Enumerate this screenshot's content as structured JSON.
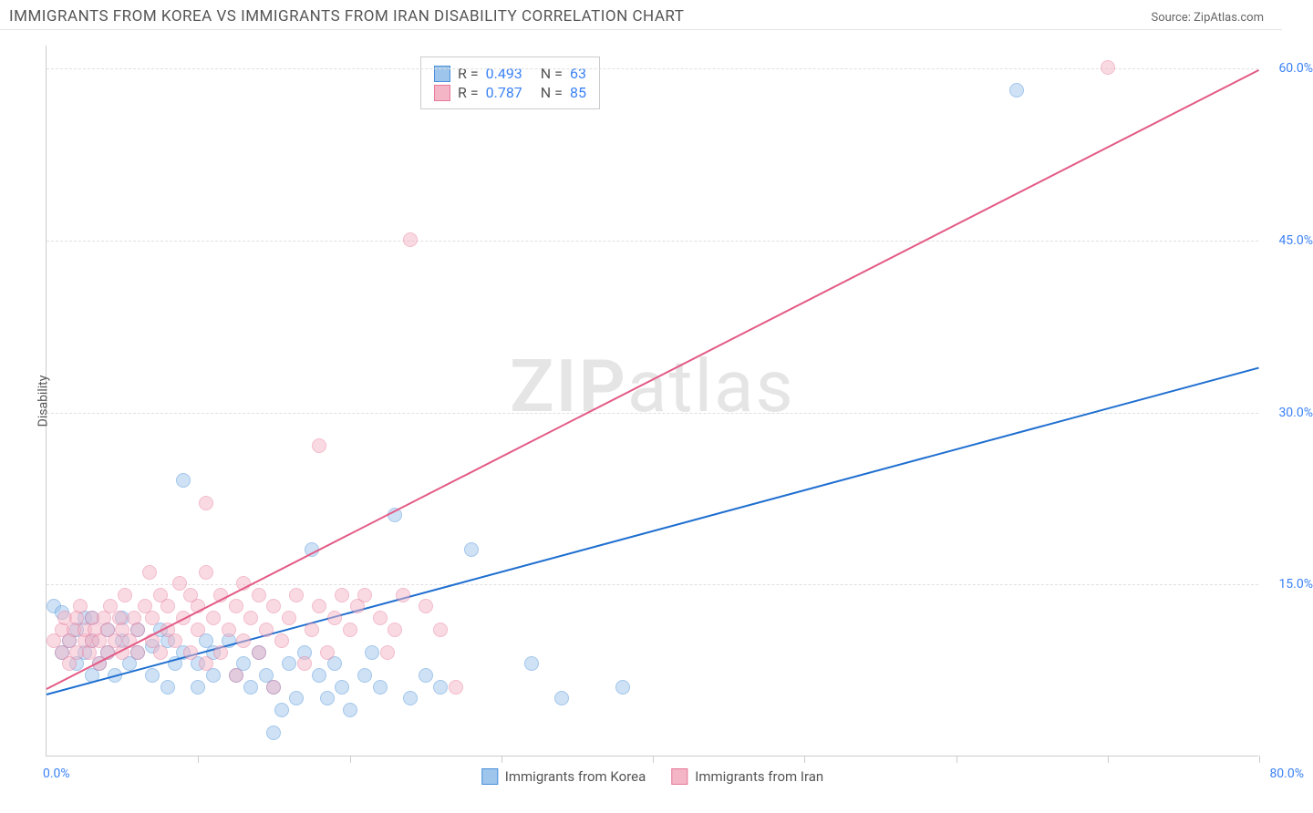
{
  "header": {
    "title": "IMMIGRANTS FROM KOREA VS IMMIGRANTS FROM IRAN DISABILITY CORRELATION CHART",
    "source_label": "Source: ZipAtlas.com"
  },
  "watermark": {
    "left": "ZIP",
    "right": "atlas"
  },
  "chart": {
    "type": "scatter",
    "y_axis_label": "Disability",
    "xlim": [
      0,
      80
    ],
    "ylim": [
      0,
      62
    ],
    "x_min_label": "0.0%",
    "x_max_label": "80.0%",
    "y_ticks": [
      15,
      30,
      45,
      60
    ],
    "y_tick_labels": [
      "15.0%",
      "30.0%",
      "45.0%",
      "60.0%"
    ],
    "x_tick_positions": [
      10,
      20,
      30,
      40,
      50,
      60,
      70,
      80
    ],
    "grid_color": "#e0e0e0",
    "axis_color": "#cccccc",
    "tick_label_color": "#3b82f6",
    "background_color": "#ffffff",
    "point_radius": 8,
    "point_opacity": 0.5,
    "series": [
      {
        "name": "Immigrants from Korea",
        "key": "korea",
        "color_fill": "#9ec5ec",
        "color_stroke": "#4a90d9",
        "R": "0.493",
        "N": "63",
        "trend": {
          "x1": 0,
          "y1": 5.5,
          "x2": 80,
          "y2": 34,
          "color": "#1f6fd0",
          "width": 2
        },
        "points": [
          [
            0.5,
            13
          ],
          [
            1,
            9
          ],
          [
            1,
            12.5
          ],
          [
            1.5,
            10
          ],
          [
            2,
            8
          ],
          [
            2,
            11
          ],
          [
            2.5,
            9
          ],
          [
            2.5,
            12
          ],
          [
            3,
            7
          ],
          [
            3,
            10
          ],
          [
            3,
            12
          ],
          [
            3.5,
            8
          ],
          [
            4,
            9
          ],
          [
            4,
            11
          ],
          [
            4.5,
            7
          ],
          [
            5,
            10
          ],
          [
            5,
            12
          ],
          [
            5.5,
            8
          ],
          [
            6,
            9
          ],
          [
            6,
            11
          ],
          [
            7,
            7
          ],
          [
            7,
            9.5
          ],
          [
            7.5,
            11
          ],
          [
            8,
            6
          ],
          [
            8,
            10
          ],
          [
            8.5,
            8
          ],
          [
            9,
            9
          ],
          [
            9,
            24
          ],
          [
            10,
            6
          ],
          [
            10,
            8
          ],
          [
            10.5,
            10
          ],
          [
            11,
            7
          ],
          [
            11,
            9
          ],
          [
            12,
            10
          ],
          [
            12.5,
            7
          ],
          [
            13,
            8
          ],
          [
            13.5,
            6
          ],
          [
            14,
            9
          ],
          [
            14.5,
            7
          ],
          [
            15,
            2
          ],
          [
            15,
            6
          ],
          [
            15.5,
            4
          ],
          [
            16,
            8
          ],
          [
            16.5,
            5
          ],
          [
            17,
            9
          ],
          [
            17.5,
            18
          ],
          [
            18,
            7
          ],
          [
            18.5,
            5
          ],
          [
            19,
            8
          ],
          [
            19.5,
            6
          ],
          [
            20,
            4
          ],
          [
            21,
            7
          ],
          [
            21.5,
            9
          ],
          [
            22,
            6
          ],
          [
            23,
            21
          ],
          [
            24,
            5
          ],
          [
            25,
            7
          ],
          [
            26,
            6
          ],
          [
            28,
            18
          ],
          [
            32,
            8
          ],
          [
            34,
            5
          ],
          [
            38,
            6
          ],
          [
            64,
            58
          ]
        ]
      },
      {
        "name": "Immigrants from Iran",
        "key": "iran",
        "color_fill": "#f4b6c6",
        "color_stroke": "#e77a9b",
        "R": "0.787",
        "N": "85",
        "trend": {
          "x1": 0,
          "y1": 6,
          "x2": 80,
          "y2": 60,
          "color": "#e35a85",
          "width": 2
        },
        "points": [
          [
            0.5,
            10
          ],
          [
            1,
            9
          ],
          [
            1,
            11
          ],
          [
            1.2,
            12
          ],
          [
            1.5,
            8
          ],
          [
            1.5,
            10
          ],
          [
            1.8,
            11
          ],
          [
            2,
            9
          ],
          [
            2,
            12
          ],
          [
            2.2,
            13
          ],
          [
            2.5,
            10
          ],
          [
            2.5,
            11
          ],
          [
            2.8,
            9
          ],
          [
            3,
            10
          ],
          [
            3,
            12
          ],
          [
            3.2,
            11
          ],
          [
            3.5,
            8
          ],
          [
            3.5,
            10
          ],
          [
            3.8,
            12
          ],
          [
            4,
            9
          ],
          [
            4,
            11
          ],
          [
            4.2,
            13
          ],
          [
            4.5,
            10
          ],
          [
            4.8,
            12
          ],
          [
            5,
            9
          ],
          [
            5,
            11
          ],
          [
            5.2,
            14
          ],
          [
            5.5,
            10
          ],
          [
            5.8,
            12
          ],
          [
            6,
            9
          ],
          [
            6,
            11
          ],
          [
            6.5,
            13
          ],
          [
            6.8,
            16
          ],
          [
            7,
            10
          ],
          [
            7,
            12
          ],
          [
            7.5,
            9
          ],
          [
            7.5,
            14
          ],
          [
            8,
            11
          ],
          [
            8,
            13
          ],
          [
            8.5,
            10
          ],
          [
            8.8,
            15
          ],
          [
            9,
            12
          ],
          [
            9.5,
            14
          ],
          [
            9.5,
            9
          ],
          [
            10,
            11
          ],
          [
            10,
            13
          ],
          [
            10.5,
            8
          ],
          [
            10.5,
            16
          ],
          [
            10.5,
            22
          ],
          [
            11,
            12
          ],
          [
            11.5,
            9
          ],
          [
            11.5,
            14
          ],
          [
            12,
            11
          ],
          [
            12.5,
            13
          ],
          [
            12.5,
            7
          ],
          [
            13,
            10
          ],
          [
            13,
            15
          ],
          [
            13.5,
            12
          ],
          [
            14,
            9
          ],
          [
            14,
            14
          ],
          [
            14.5,
            11
          ],
          [
            15,
            13
          ],
          [
            15,
            6
          ],
          [
            15.5,
            10
          ],
          [
            16,
            12
          ],
          [
            16.5,
            14
          ],
          [
            17,
            8
          ],
          [
            17.5,
            11
          ],
          [
            18,
            13
          ],
          [
            18,
            27
          ],
          [
            18.5,
            9
          ],
          [
            19,
            12
          ],
          [
            19.5,
            14
          ],
          [
            20,
            11
          ],
          [
            20.5,
            13
          ],
          [
            21,
            14
          ],
          [
            22,
            12
          ],
          [
            22.5,
            9
          ],
          [
            23,
            11
          ],
          [
            23.5,
            14
          ],
          [
            24,
            45
          ],
          [
            25,
            13
          ],
          [
            26,
            11
          ],
          [
            27,
            6
          ],
          [
            70,
            60
          ]
        ]
      }
    ],
    "legend_bottom": [
      {
        "label": "Immigrants from Korea",
        "fill": "#9ec5ec",
        "stroke": "#4a90d9"
      },
      {
        "label": "Immigrants from Iran",
        "fill": "#f4b6c6",
        "stroke": "#e77a9b"
      }
    ]
  }
}
